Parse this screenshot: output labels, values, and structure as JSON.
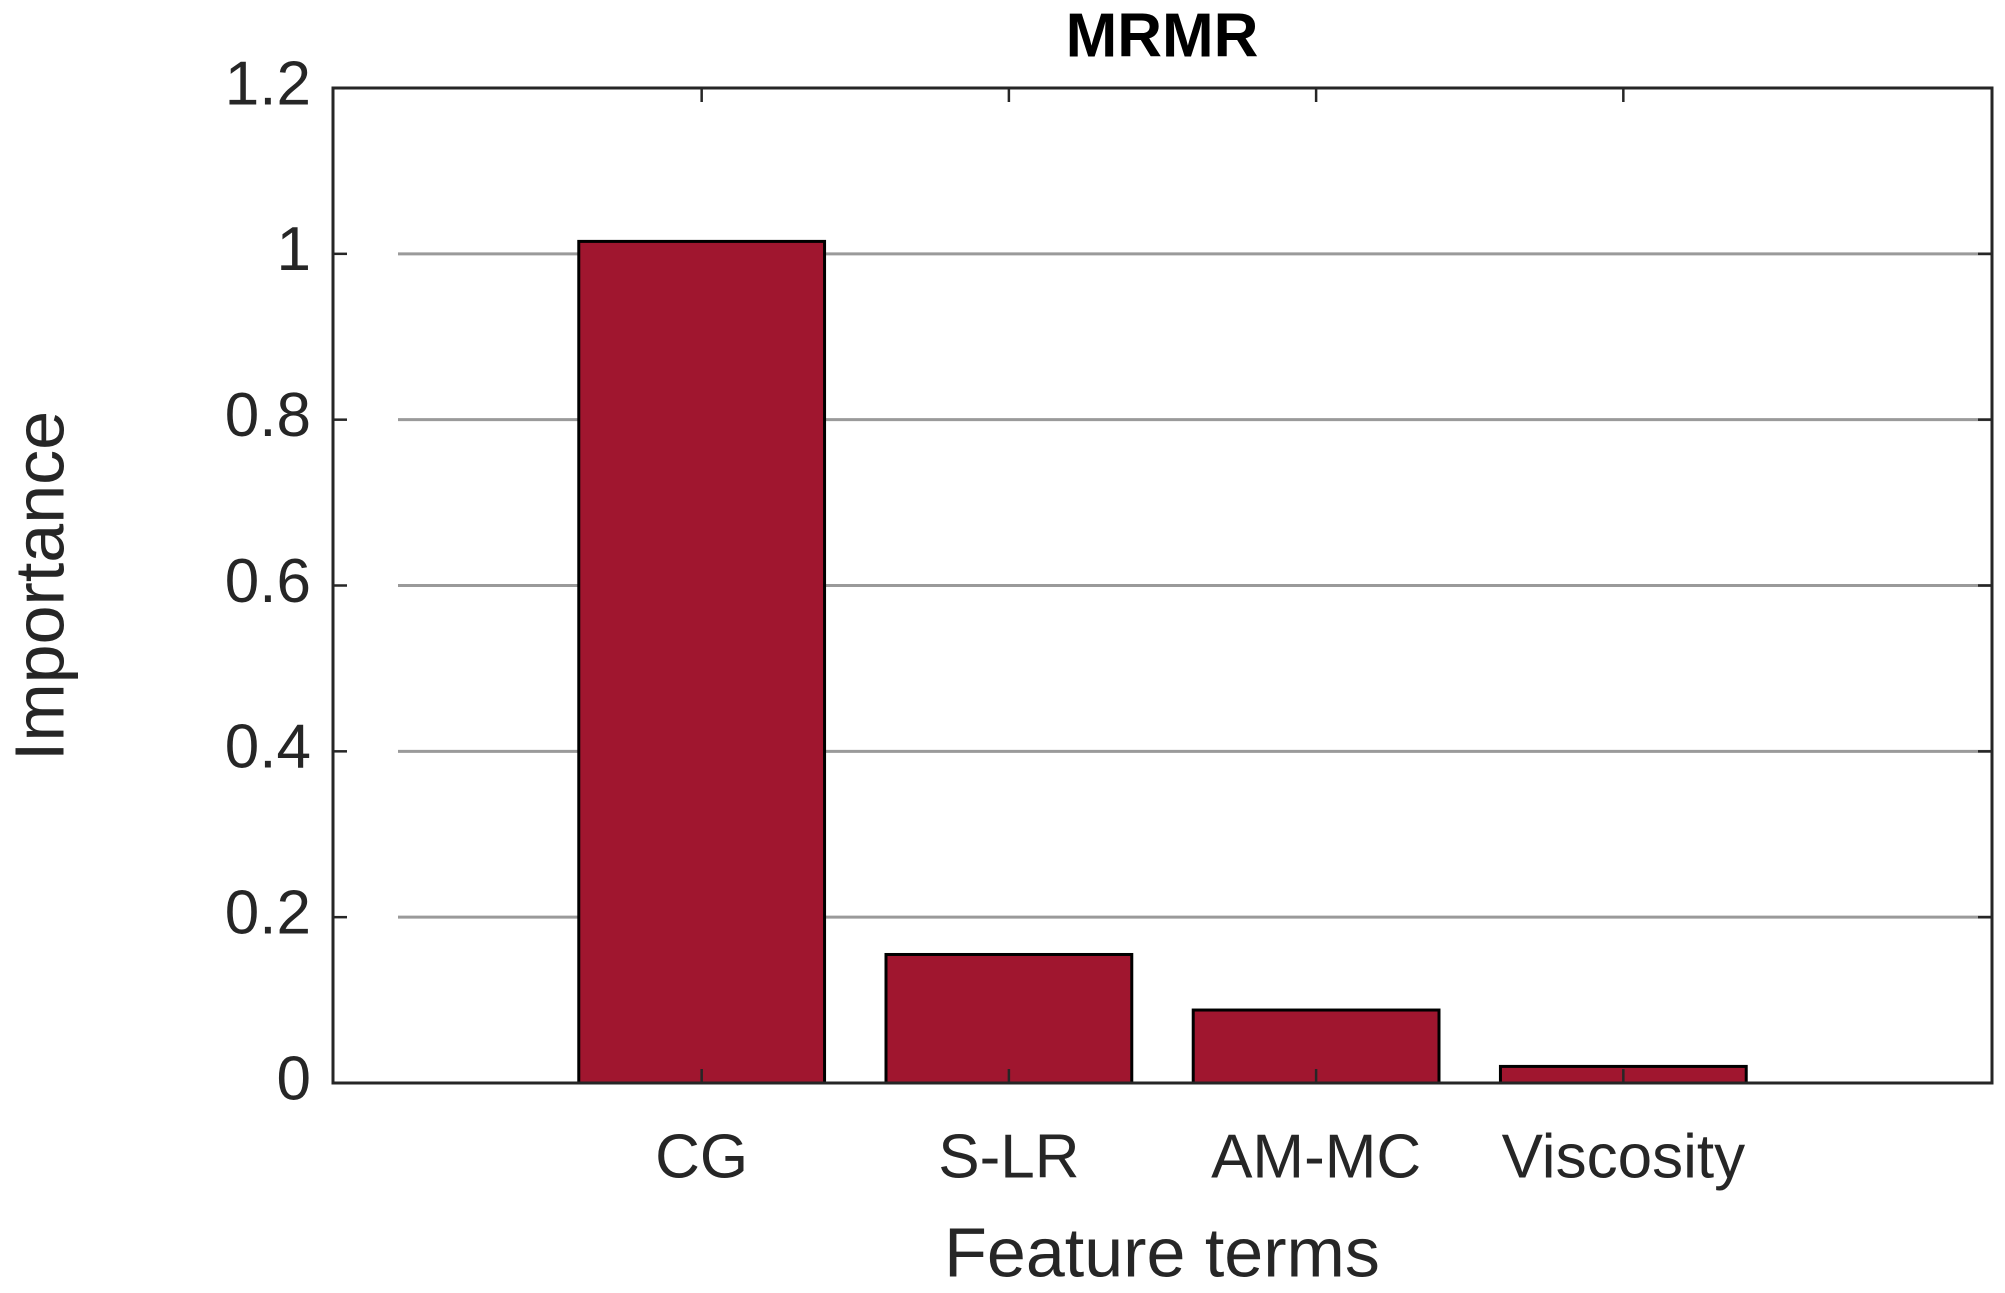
{
  "chart_data": {
    "type": "bar",
    "title": "MRMR",
    "x_label": "Feature terms",
    "y_label": "Importance",
    "categories": [
      "CG",
      "S-LR",
      "AM-MC",
      "Viscosity"
    ],
    "values": [
      1.015,
      0.155,
      0.088,
      0.02
    ],
    "color": "#a0162f",
    "ylim": [
      0,
      1.2
    ],
    "yticks": [
      0,
      0.2,
      0.4,
      0.6,
      0.8,
      1,
      1.2
    ],
    "grid": true
  }
}
